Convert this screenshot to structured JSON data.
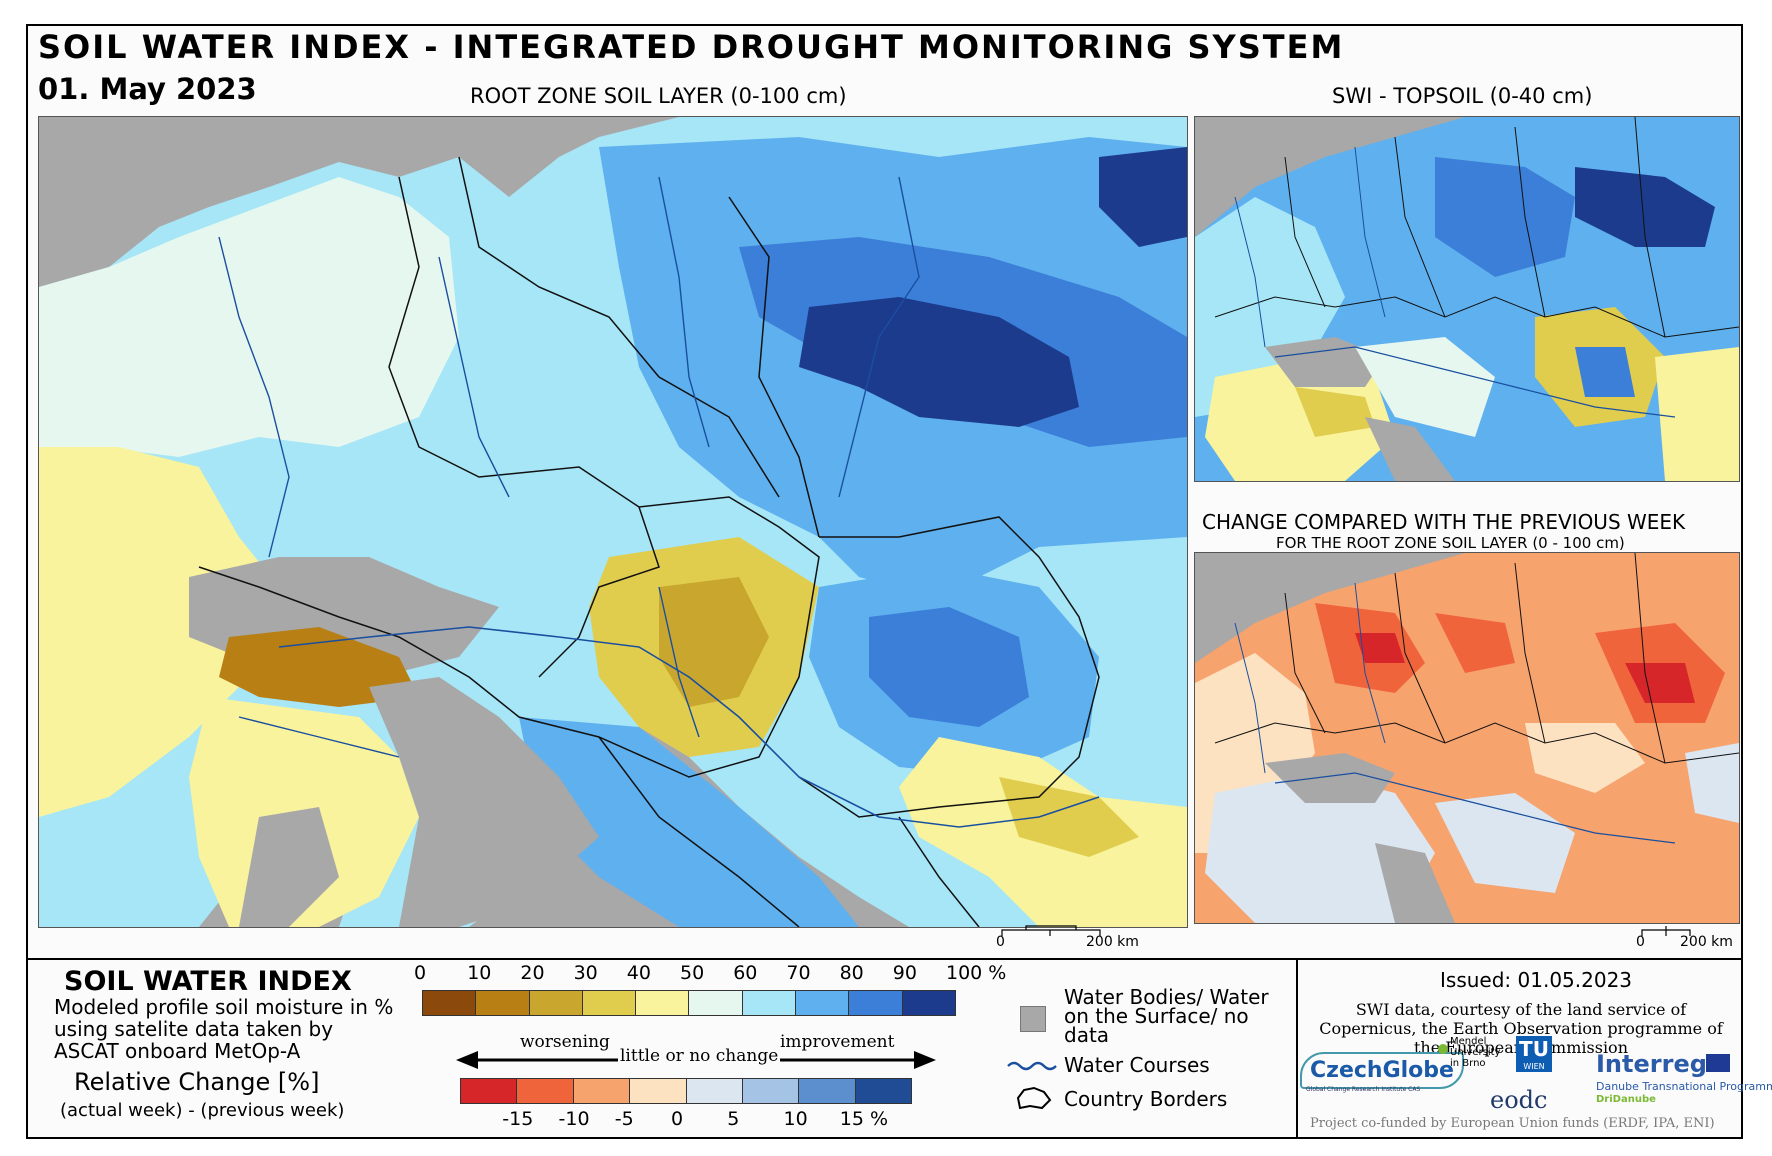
{
  "header": {
    "title": "SOIL WATER INDEX - INTEGRATED DROUGHT MONITORING SYSTEM",
    "date": "01. May 2023"
  },
  "maps": {
    "main_label": "ROOT ZONE SOIL LAYER (0-100 cm)",
    "topsoil_label": "SWI - TOPSOIL (0-40 cm)",
    "change_label": "CHANGE COMPARED WITH THE PREVIOUS WEEK",
    "change_sublabel": "FOR THE ROOT ZONE SOIL LAYER (0 - 100 cm)",
    "scale_main_zero": "0",
    "scale_main_km": "200 km",
    "scale_small_zero": "0",
    "scale_small_km": "200 km"
  },
  "legend": {
    "title": "SOIL WATER INDEX",
    "description": "Modeled profile soil moisture in % using satelite data taken by ASCAT onboard MetOp-A",
    "relative_title": "Relative Change [%]",
    "relative_sub": "(actual week) - (previous week)",
    "swi_ticks": [
      "0",
      "10",
      "20",
      "30",
      "40",
      "50",
      "60",
      "70",
      "80",
      "90",
      "100 %"
    ],
    "swi_colors": [
      "#8b4a0c",
      "#b77f14",
      "#c9a62e",
      "#e0cd4e",
      "#f8f39c",
      "#e6f7f0",
      "#a6e6f7",
      "#5fb0ee",
      "#3b7fd8",
      "#1c3b8c"
    ],
    "change_ticks": [
      "-15",
      "-10",
      "-5",
      "0",
      "5",
      "10",
      "15 %"
    ],
    "change_colors": [
      "#d7262a",
      "#f0643c",
      "#f7a36e",
      "#fde2c2",
      "#dbe6f0",
      "#a5c3e4",
      "#5b8fcd",
      "#1f4c94"
    ],
    "worsening": "worsening",
    "little_change": "little or no change",
    "improvement": "improvement",
    "water_bodies": "Water Bodies/ Water on the Surface/ no data",
    "water_courses": "Water Courses",
    "country_borders": "Country Borders"
  },
  "info": {
    "issued": "Issued: 01.05.2023",
    "credit": "SWI data, courtesy of the land service of Copernicus, the Earth Observation programme of the European Commission",
    "cofunded": "Project co-funded by European Union funds (ERDF, IPA, ENI)",
    "logo_czechglobe": "CzechGlobe",
    "logo_czechglobe_sub": "Global Change Research Institute CAS",
    "logo_mendel": "Mendel University in Brno",
    "logo_tu": "TU",
    "logo_tu_sub": "WIEN",
    "logo_eodc": "eodc",
    "logo_interreg": "Interreg",
    "logo_interreg_sub": "Danube Transnational Programme",
    "logo_dridanube": "DriDanube"
  }
}
